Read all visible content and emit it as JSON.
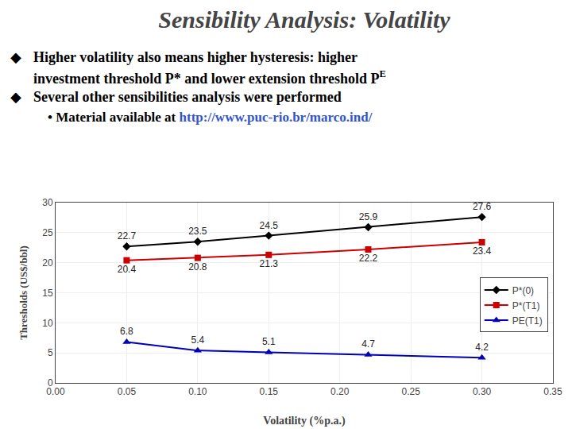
{
  "chart_data": {
    "type": "line",
    "title": "Sensibility Analysis: Volatility",
    "annotations": [
      "◆",
      "Higher volatility also means higher hysteresis: higher",
      "investment threshold P* and lower extension threshold P",
      "E",
      "◆",
      "Several other sensibilities analysis were performed",
      "• Material available at",
      "http://www.puc-rio.br/marco.ind/"
    ],
    "x_label": "Volatility (%p.a.)",
    "y_label": "Thresholds (US$/bbl)",
    "x": [
      0.05,
      0.1,
      0.15,
      0.22,
      0.3
    ],
    "series": [
      {
        "name": "P*(0)",
        "color": "#000000",
        "marker": "diamond",
        "values": [
          22.7,
          23.5,
          24.5,
          25.9,
          27.6
        ]
      },
      {
        "name": "P*(T1)",
        "color": "#CC0000",
        "marker": "square",
        "values": [
          20.4,
          20.8,
          21.3,
          22.2,
          23.4
        ]
      },
      {
        "name": "PE(T1)",
        "color": "#0000BB",
        "marker": "triangle-up",
        "values": [
          6.8,
          5.4,
          5.1,
          4.7,
          4.2
        ]
      }
    ],
    "xlim": [
      0,
      0.35
    ],
    "ylim": [
      0,
      30
    ],
    "xticks": [
      {
        "value": 0,
        "label": "0.00"
      },
      0.05,
      {
        "value": 0.1,
        "label": "0.10"
      },
      0.15,
      {
        "value": 0.2,
        "label": "0.20"
      },
      0.25,
      {
        "value": 0.3,
        "label": "0.30"
      },
      0.35
    ],
    "yticks": [
      0,
      5,
      10,
      15,
      20,
      25,
      30
    ],
    "grid": true,
    "legend": "lower right",
    "data_labels": true
  }
}
